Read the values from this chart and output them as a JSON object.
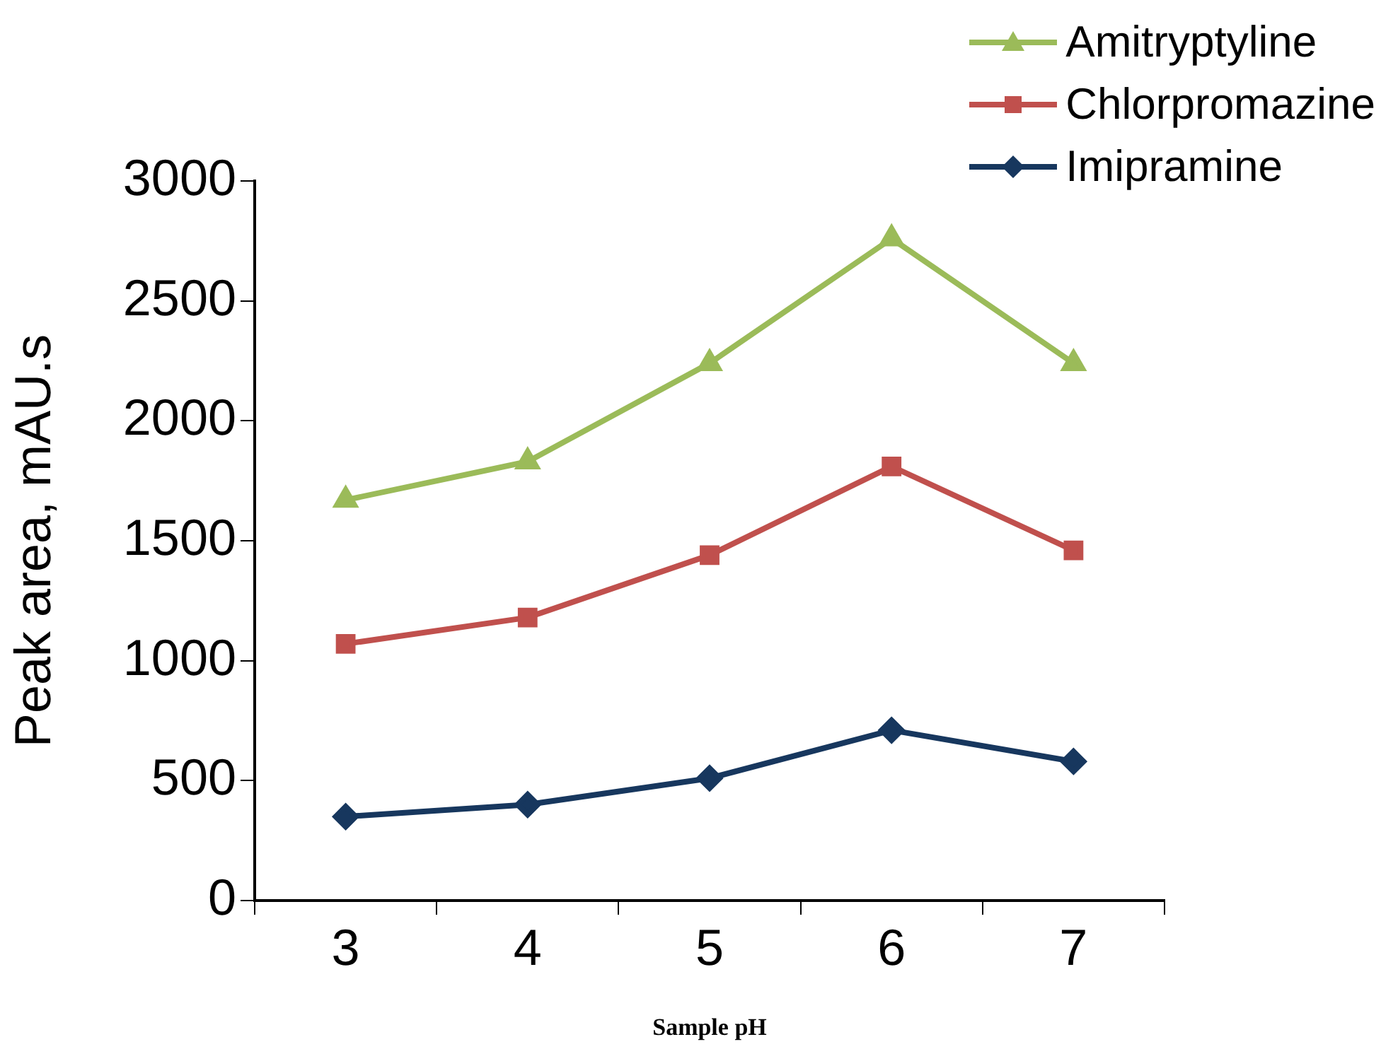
{
  "chart_data": {
    "type": "line",
    "xlabel": "Sample pH",
    "ylabel": "Peak area, mAU.s",
    "categories": [
      "3",
      "4",
      "5",
      "6",
      "7"
    ],
    "series": [
      {
        "name": "Amitryptyline",
        "color": "#9bbb59",
        "marker": "triangle",
        "values": [
          1670,
          1830,
          2240,
          2760,
          2240
        ]
      },
      {
        "name": "Chlorpromazine",
        "color": "#c0504d",
        "marker": "square",
        "values": [
          1070,
          1180,
          1440,
          1810,
          1460
        ]
      },
      {
        "name": "Imipramine",
        "color": "#17375e",
        "marker": "diamond",
        "values": [
          350,
          400,
          510,
          710,
          580
        ]
      }
    ],
    "ylim": [
      0,
      3000
    ],
    "yticks": [
      0,
      500,
      1000,
      1500,
      2000,
      2500,
      3000
    ],
    "grid": false,
    "legend": "top right"
  }
}
